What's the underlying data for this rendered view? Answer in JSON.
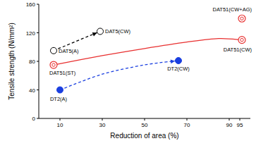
{
  "chart_data": {
    "type": "scatter",
    "x_label": "Reduction of area (%)",
    "y_label": "Tensile strength (N/mm²)",
    "xlim": [
      0,
      100
    ],
    "xticks": [
      10,
      30,
      50,
      70,
      90,
      95
    ],
    "ylim": [
      0,
      160
    ],
    "yticks": [
      0,
      40,
      80,
      120,
      160
    ],
    "grid": false,
    "series": [
      {
        "name": "DAT5(A)",
        "type": "scatter",
        "marker": "open_circle",
        "color": "#000000",
        "x": [
          7
        ],
        "values": [
          95
        ]
      },
      {
        "name": "DAT5(CW)",
        "type": "scatter",
        "marker": "open_circle",
        "color": "#000000",
        "x": [
          29
        ],
        "values": [
          122
        ]
      },
      {
        "name": "DT2(A)",
        "type": "scatter",
        "marker": "filled_circle",
        "color": "#1a3fe0",
        "x": [
          10
        ],
        "values": [
          40
        ]
      },
      {
        "name": "DT2(CW)",
        "type": "scatter",
        "marker": "filled_circle",
        "color": "#1a3fe0",
        "x": [
          66
        ],
        "values": [
          81
        ]
      },
      {
        "name": "DAT51(ST)",
        "type": "scatter",
        "marker": "double_circle",
        "color": "#e83030",
        "x": [
          7
        ],
        "values": [
          75
        ]
      },
      {
        "name": "DAT51(CW)",
        "type": "scatter",
        "marker": "double_circle",
        "color": "#e83030",
        "x": [
          96
        ],
        "values": [
          110
        ]
      },
      {
        "name": "DAT51(CW+AG)",
        "type": "scatter",
        "marker": "double_circle",
        "color": "#e83030",
        "x": [
          96
        ],
        "values": [
          140
        ]
      },
      {
        "type": "line",
        "line_style": "dashed",
        "marker": "none",
        "color": "#000000",
        "x": [
          7,
          29
        ],
        "values": [
          95,
          122
        ]
      },
      {
        "type": "line",
        "line_style": "dashed",
        "marker": "none",
        "color": "#1a3fe0",
        "x": [
          10,
          30,
          50,
          66
        ],
        "values": [
          40,
          62,
          75,
          81
        ]
      },
      {
        "type": "line",
        "line_style": "solid",
        "marker": "none",
        "color": "#e83030",
        "x": [
          7,
          30,
          50,
          70,
          85,
          96
        ],
        "values": [
          75,
          88,
          98,
          107,
          112,
          110
        ]
      }
    ]
  }
}
